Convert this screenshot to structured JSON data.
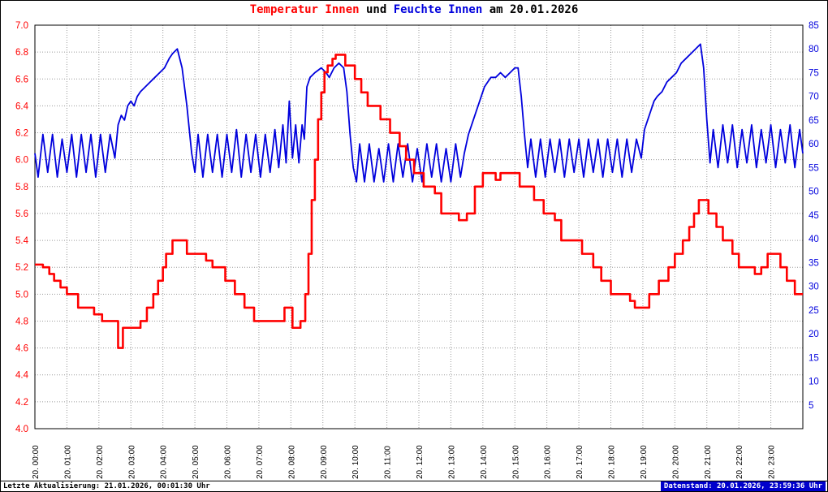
{
  "title": {
    "temperature_label": "Temperatur Innen",
    "connector": " und ",
    "humidity_label": "Feuchte Innen",
    "date_suffix": " am 20.01.2026"
  },
  "footer": {
    "last_update": "Letzte Aktualisierung: 21.01.2026, 00:01:30 Uhr",
    "data_state": "Datenstand: 20.01.2026, 23:59:36 Uhr"
  },
  "colors": {
    "temperature": "#ff0000",
    "humidity": "#0000dd",
    "grid": "#9a9a9a",
    "axis_border": "#000000",
    "x_label": "#000000",
    "datenstand_bg": "#0000cc",
    "datenstand_text": "#ffffff"
  },
  "chart_data": {
    "type": "line",
    "title": "Temperatur Innen und Feuchte Innen am 20.01.2026",
    "x_unit": "hours",
    "x_range": [
      0,
      24
    ],
    "grid": "dotted",
    "x_tick_labels": [
      "20. 00:00",
      "20. 01:00",
      "20. 02:00",
      "20. 03:00",
      "20. 04:00",
      "20. 05:00",
      "20. 06:00",
      "20. 07:00",
      "20. 08:00",
      "20. 09:00",
      "20. 10:00",
      "20. 11:00",
      "20. 12:00",
      "20. 13:00",
      "20. 14:00",
      "20. 15:00",
      "20. 16:00",
      "20. 17:00",
      "20. 18:00",
      "20. 19:00",
      "20. 20:00",
      "20. 21:00",
      "20. 22:00",
      "20. 23:00"
    ],
    "left_axis": {
      "name": "Temperatur Innen",
      "min": 4.0,
      "max": 7.0,
      "step": 0.2,
      "color": "#ff0000"
    },
    "right_axis": {
      "name": "Feuchte Innen",
      "min": 0,
      "max": 85,
      "step": 5,
      "color": "#0000dd"
    },
    "series": [
      {
        "name": "Feuchte Innen",
        "axis": "right",
        "color": "#0000dd",
        "style": "linear",
        "points": [
          [
            0,
            58
          ],
          [
            0.1,
            53
          ],
          [
            0.25,
            62
          ],
          [
            0.4,
            54
          ],
          [
            0.55,
            62
          ],
          [
            0.7,
            53
          ],
          [
            0.85,
            61
          ],
          [
            1,
            54
          ],
          [
            1.15,
            62
          ],
          [
            1.3,
            53
          ],
          [
            1.45,
            62
          ],
          [
            1.6,
            54
          ],
          [
            1.75,
            62
          ],
          [
            1.9,
            53
          ],
          [
            2.05,
            62
          ],
          [
            2.2,
            54
          ],
          [
            2.35,
            62
          ],
          [
            2.5,
            57
          ],
          [
            2.6,
            64
          ],
          [
            2.7,
            66
          ],
          [
            2.8,
            65
          ],
          [
            2.9,
            68
          ],
          [
            3,
            69
          ],
          [
            3.1,
            68
          ],
          [
            3.2,
            70
          ],
          [
            3.3,
            71
          ],
          [
            3.45,
            72
          ],
          [
            3.6,
            73
          ],
          [
            3.75,
            74
          ],
          [
            3.9,
            75
          ],
          [
            4.05,
            76
          ],
          [
            4.2,
            78
          ],
          [
            4.3,
            79
          ],
          [
            4.45,
            80
          ],
          [
            4.6,
            76
          ],
          [
            4.75,
            68
          ],
          [
            4.9,
            58
          ],
          [
            5,
            54
          ],
          [
            5.1,
            62
          ],
          [
            5.25,
            53
          ],
          [
            5.4,
            62
          ],
          [
            5.55,
            54
          ],
          [
            5.7,
            62
          ],
          [
            5.85,
            53
          ],
          [
            6,
            62
          ],
          [
            6.15,
            54
          ],
          [
            6.3,
            63
          ],
          [
            6.45,
            53
          ],
          [
            6.6,
            62
          ],
          [
            6.75,
            54
          ],
          [
            6.9,
            62
          ],
          [
            7.05,
            53
          ],
          [
            7.2,
            62
          ],
          [
            7.35,
            54
          ],
          [
            7.5,
            63
          ],
          [
            7.62,
            55
          ],
          [
            7.75,
            64
          ],
          [
            7.85,
            56
          ],
          [
            7.95,
            69
          ],
          [
            8.05,
            57
          ],
          [
            8.15,
            64
          ],
          [
            8.25,
            56
          ],
          [
            8.35,
            64
          ],
          [
            8.42,
            61
          ],
          [
            8.5,
            72
          ],
          [
            8.6,
            74
          ],
          [
            8.75,
            75
          ],
          [
            8.95,
            76
          ],
          [
            9.1,
            75
          ],
          [
            9.2,
            74
          ],
          [
            9.35,
            76
          ],
          [
            9.5,
            77
          ],
          [
            9.65,
            76
          ],
          [
            9.75,
            71
          ],
          [
            9.85,
            62
          ],
          [
            9.95,
            55
          ],
          [
            10.05,
            52
          ],
          [
            10.15,
            60
          ],
          [
            10.3,
            52
          ],
          [
            10.45,
            60
          ],
          [
            10.6,
            52
          ],
          [
            10.75,
            59
          ],
          [
            10.9,
            52
          ],
          [
            11.05,
            60
          ],
          [
            11.2,
            52
          ],
          [
            11.35,
            60
          ],
          [
            11.5,
            53
          ],
          [
            11.65,
            60
          ],
          [
            11.8,
            52
          ],
          [
            11.95,
            59
          ],
          [
            12.1,
            52
          ],
          [
            12.25,
            60
          ],
          [
            12.4,
            53
          ],
          [
            12.55,
            60
          ],
          [
            12.7,
            52
          ],
          [
            12.85,
            59
          ],
          [
            13,
            52
          ],
          [
            13.15,
            60
          ],
          [
            13.3,
            53
          ],
          [
            13.42,
            58
          ],
          [
            13.55,
            62
          ],
          [
            13.65,
            64
          ],
          [
            13.75,
            66
          ],
          [
            13.85,
            68
          ],
          [
            13.95,
            70
          ],
          [
            14.05,
            72
          ],
          [
            14.15,
            73
          ],
          [
            14.25,
            74
          ],
          [
            14.4,
            74
          ],
          [
            14.55,
            75
          ],
          [
            14.7,
            74
          ],
          [
            14.85,
            75
          ],
          [
            15,
            76
          ],
          [
            15.1,
            76
          ],
          [
            15.2,
            70
          ],
          [
            15.3,
            62
          ],
          [
            15.4,
            55
          ],
          [
            15.5,
            61
          ],
          [
            15.65,
            53
          ],
          [
            15.8,
            61
          ],
          [
            15.95,
            53
          ],
          [
            16.1,
            61
          ],
          [
            16.25,
            54
          ],
          [
            16.4,
            61
          ],
          [
            16.55,
            53
          ],
          [
            16.7,
            61
          ],
          [
            16.85,
            54
          ],
          [
            17,
            61
          ],
          [
            17.15,
            53
          ],
          [
            17.3,
            61
          ],
          [
            17.45,
            54
          ],
          [
            17.6,
            61
          ],
          [
            17.75,
            53
          ],
          [
            17.9,
            61
          ],
          [
            18.05,
            54
          ],
          [
            18.2,
            61
          ],
          [
            18.35,
            53
          ],
          [
            18.5,
            61
          ],
          [
            18.65,
            54
          ],
          [
            18.8,
            61
          ],
          [
            18.95,
            57
          ],
          [
            19.05,
            63
          ],
          [
            19.15,
            65
          ],
          [
            19.25,
            67
          ],
          [
            19.35,
            69
          ],
          [
            19.45,
            70
          ],
          [
            19.6,
            71
          ],
          [
            19.75,
            73
          ],
          [
            19.9,
            74
          ],
          [
            20.05,
            75
          ],
          [
            20.2,
            77
          ],
          [
            20.35,
            78
          ],
          [
            20.5,
            79
          ],
          [
            20.65,
            80
          ],
          [
            20.8,
            81
          ],
          [
            20.9,
            76
          ],
          [
            21,
            65
          ],
          [
            21.1,
            56
          ],
          [
            21.2,
            63
          ],
          [
            21.35,
            55
          ],
          [
            21.5,
            64
          ],
          [
            21.65,
            56
          ],
          [
            21.8,
            64
          ],
          [
            21.95,
            55
          ],
          [
            22.1,
            63
          ],
          [
            22.25,
            56
          ],
          [
            22.4,
            64
          ],
          [
            22.55,
            55
          ],
          [
            22.7,
            63
          ],
          [
            22.85,
            56
          ],
          [
            23,
            64
          ],
          [
            23.15,
            55
          ],
          [
            23.3,
            63
          ],
          [
            23.45,
            56
          ],
          [
            23.6,
            64
          ],
          [
            23.75,
            55
          ],
          [
            23.9,
            63
          ],
          [
            24,
            58
          ]
        ]
      },
      {
        "name": "Temperatur Innen",
        "axis": "left",
        "color": "#ff0000",
        "style": "step",
        "points": [
          [
            0,
            5.22
          ],
          [
            0.25,
            5.2
          ],
          [
            0.45,
            5.15
          ],
          [
            0.6,
            5.1
          ],
          [
            0.8,
            5.05
          ],
          [
            1,
            5.0
          ],
          [
            1.35,
            4.9
          ],
          [
            1.85,
            4.85
          ],
          [
            2.1,
            4.8
          ],
          [
            2.6,
            4.6
          ],
          [
            2.75,
            4.75
          ],
          [
            3.3,
            4.8
          ],
          [
            3.5,
            4.9
          ],
          [
            3.7,
            5.0
          ],
          [
            3.85,
            5.1
          ],
          [
            4,
            5.2
          ],
          [
            4.1,
            5.3
          ],
          [
            4.3,
            5.4
          ],
          [
            4.75,
            5.3
          ],
          [
            5.35,
            5.25
          ],
          [
            5.55,
            5.2
          ],
          [
            5.95,
            5.1
          ],
          [
            6.25,
            5.0
          ],
          [
            6.55,
            4.9
          ],
          [
            6.85,
            4.8
          ],
          [
            7.8,
            4.9
          ],
          [
            8.05,
            4.75
          ],
          [
            8.3,
            4.8
          ],
          [
            8.45,
            5.0
          ],
          [
            8.55,
            5.3
          ],
          [
            8.65,
            5.7
          ],
          [
            8.75,
            6.0
          ],
          [
            8.85,
            6.3
          ],
          [
            8.95,
            6.5
          ],
          [
            9.05,
            6.65
          ],
          [
            9.15,
            6.7
          ],
          [
            9.3,
            6.75
          ],
          [
            9.4,
            6.78
          ],
          [
            9.7,
            6.7
          ],
          [
            10,
            6.6
          ],
          [
            10.2,
            6.5
          ],
          [
            10.4,
            6.4
          ],
          [
            10.8,
            6.3
          ],
          [
            11.1,
            6.2
          ],
          [
            11.4,
            6.1
          ],
          [
            11.6,
            6.0
          ],
          [
            11.85,
            5.9
          ],
          [
            12.15,
            5.8
          ],
          [
            12.5,
            5.75
          ],
          [
            12.7,
            5.6
          ],
          [
            13.25,
            5.55
          ],
          [
            13.5,
            5.6
          ],
          [
            13.75,
            5.8
          ],
          [
            14,
            5.9
          ],
          [
            14.4,
            5.85
          ],
          [
            14.55,
            5.9
          ],
          [
            15.15,
            5.8
          ],
          [
            15.6,
            5.7
          ],
          [
            15.9,
            5.6
          ],
          [
            16.25,
            5.55
          ],
          [
            16.45,
            5.4
          ],
          [
            17.1,
            5.3
          ],
          [
            17.45,
            5.2
          ],
          [
            17.7,
            5.1
          ],
          [
            18,
            5.0
          ],
          [
            18.6,
            4.95
          ],
          [
            18.75,
            4.9
          ],
          [
            19.2,
            5.0
          ],
          [
            19.5,
            5.1
          ],
          [
            19.8,
            5.2
          ],
          [
            20,
            5.3
          ],
          [
            20.25,
            5.4
          ],
          [
            20.45,
            5.5
          ],
          [
            20.6,
            5.6
          ],
          [
            20.75,
            5.7
          ],
          [
            21.05,
            5.6
          ],
          [
            21.3,
            5.5
          ],
          [
            21.5,
            5.4
          ],
          [
            21.8,
            5.3
          ],
          [
            22,
            5.2
          ],
          [
            22.5,
            5.15
          ],
          [
            22.7,
            5.2
          ],
          [
            22.9,
            5.3
          ],
          [
            23.3,
            5.2
          ],
          [
            23.5,
            5.1
          ],
          [
            23.75,
            5.0
          ]
        ]
      }
    ]
  }
}
